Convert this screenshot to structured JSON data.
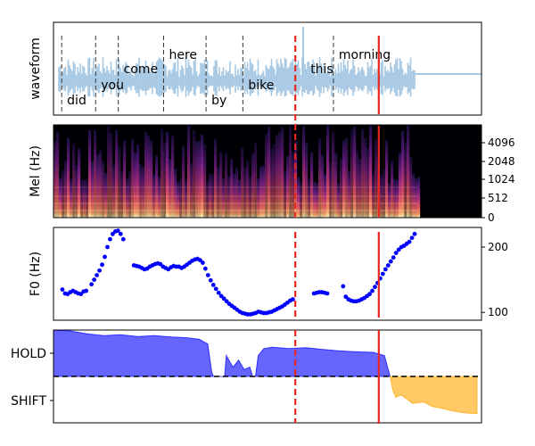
{
  "chart_data": [
    {
      "type": "line",
      "panel": "waveform",
      "ylabel": "waveform",
      "x_range": [
        0,
        6.3
      ],
      "words": [
        {
          "text": "did",
          "start": 0.05,
          "end": 0.65,
          "row": "low"
        },
        {
          "text": "you",
          "start": 0.65,
          "end": 1.05,
          "row": "mid"
        },
        {
          "text": "come",
          "start": 1.05,
          "end": 1.85,
          "row": "high"
        },
        {
          "text": "here",
          "start": 1.85,
          "end": 2.6,
          "row": "top"
        },
        {
          "text": "by",
          "start": 2.6,
          "end": 3.25,
          "row": "low"
        },
        {
          "text": "bike",
          "start": 3.25,
          "end": 4.35,
          "row": "mid"
        },
        {
          "text": "this",
          "start": 4.35,
          "end": 4.85,
          "row": "high"
        },
        {
          "text": "morning",
          "start": 4.85,
          "end": 6.3,
          "row": "top"
        }
      ],
      "boundaries": [
        0.05,
        0.65,
        1.05,
        1.85,
        2.6,
        3.25,
        4.85
      ]
    },
    {
      "type": "heatmap",
      "panel": "mel",
      "ylabel": "Mel (Hz)",
      "yticks": [
        "0",
        "512",
        "1024",
        "2048",
        "4096"
      ]
    },
    {
      "type": "scatter",
      "panel": "f0",
      "ylabel": "F0 (Hz)",
      "yticks": [
        100,
        200
      ],
      "ylim": [
        88,
        230
      ],
      "points": [
        [
          0.05,
          135
        ],
        [
          0.1,
          129
        ],
        [
          0.15,
          128
        ],
        [
          0.2,
          131
        ],
        [
          0.25,
          133
        ],
        [
          0.3,
          131
        ],
        [
          0.35,
          129
        ],
        [
          0.4,
          128
        ],
        [
          0.45,
          132
        ],
        [
          0.5,
          133
        ],
        [
          0.6,
          143
        ],
        [
          0.65,
          150
        ],
        [
          0.7,
          157
        ],
        [
          0.75,
          164
        ],
        [
          0.8,
          173
        ],
        [
          0.85,
          185
        ],
        [
          0.9,
          200
        ],
        [
          0.95,
          212
        ],
        [
          1.0,
          220
        ],
        [
          1.05,
          224
        ],
        [
          1.1,
          225
        ],
        [
          1.15,
          220
        ],
        [
          1.2,
          212
        ],
        [
          1.4,
          172
        ],
        [
          1.45,
          171
        ],
        [
          1.5,
          170
        ],
        [
          1.55,
          168
        ],
        [
          1.6,
          166
        ],
        [
          1.65,
          167
        ],
        [
          1.7,
          170
        ],
        [
          1.75,
          172
        ],
        [
          1.8,
          174
        ],
        [
          1.85,
          175
        ],
        [
          1.9,
          174
        ],
        [
          1.95,
          170
        ],
        [
          2.0,
          168
        ],
        [
          2.05,
          166
        ],
        [
          2.1,
          169
        ],
        [
          2.15,
          171
        ],
        [
          2.2,
          170
        ],
        [
          2.25,
          170
        ],
        [
          2.3,
          168
        ],
        [
          2.35,
          170
        ],
        [
          2.4,
          173
        ],
        [
          2.45,
          176
        ],
        [
          2.5,
          179
        ],
        [
          2.55,
          181
        ],
        [
          2.6,
          182
        ],
        [
          2.65,
          180
        ],
        [
          2.7,
          176
        ],
        [
          2.75,
          167
        ],
        [
          2.8,
          157
        ],
        [
          2.85,
          149
        ],
        [
          2.9,
          142
        ],
        [
          2.95,
          136
        ],
        [
          3.0,
          130
        ],
        [
          3.05,
          125
        ],
        [
          3.1,
          121
        ],
        [
          3.15,
          117
        ],
        [
          3.2,
          113
        ],
        [
          3.25,
          110
        ],
        [
          3.3,
          107
        ],
        [
          3.35,
          104
        ],
        [
          3.4,
          101
        ],
        [
          3.45,
          99
        ],
        [
          3.5,
          98
        ],
        [
          3.55,
          97
        ],
        [
          3.6,
          97
        ],
        [
          3.65,
          98
        ],
        [
          3.7,
          99
        ],
        [
          3.75,
          101
        ],
        [
          3.8,
          100
        ],
        [
          3.85,
          99
        ],
        [
          3.9,
          99
        ],
        [
          3.95,
          100
        ],
        [
          4.0,
          101
        ],
        [
          4.05,
          103
        ],
        [
          4.1,
          105
        ],
        [
          4.15,
          107
        ],
        [
          4.2,
          109
        ],
        [
          4.25,
          112
        ],
        [
          4.3,
          115
        ],
        [
          4.35,
          118
        ],
        [
          4.4,
          120
        ],
        [
          4.8,
          129
        ],
        [
          4.85,
          130
        ],
        [
          4.9,
          131
        ],
        [
          4.95,
          131
        ],
        [
          5.0,
          130
        ],
        [
          5.05,
          129
        ],
        [
          5.35,
          140
        ],
        [
          5.4,
          124
        ],
        [
          5.45,
          120
        ],
        [
          5.5,
          118
        ],
        [
          5.55,
          117
        ],
        [
          5.6,
          117
        ],
        [
          5.65,
          118
        ],
        [
          5.7,
          120
        ],
        [
          5.75,
          122
        ],
        [
          5.8,
          125
        ],
        [
          5.85,
          128
        ],
        [
          5.9,
          133
        ],
        [
          5.95,
          139
        ],
        [
          6.0,
          145
        ],
        [
          6.05,
          152
        ],
        [
          6.1,
          159
        ],
        [
          6.15,
          166
        ],
        [
          6.2,
          172
        ],
        [
          6.25,
          178
        ],
        [
          6.3,
          184
        ],
        [
          6.35,
          191
        ],
        [
          6.4,
          196
        ],
        [
          6.45,
          200
        ],
        [
          6.5,
          202
        ],
        [
          6.55,
          205
        ],
        [
          6.6,
          208
        ],
        [
          6.65,
          214
        ],
        [
          6.7,
          220
        ]
      ]
    },
    {
      "type": "area",
      "panel": "turn",
      "yticks": [
        "HOLD",
        "SHIFT"
      ],
      "ylim": [
        -1,
        1
      ],
      "hold": [
        [
          0.0,
          1.0
        ],
        [
          0.3,
          0.98
        ],
        [
          0.6,
          0.92
        ],
        [
          0.9,
          0.88
        ],
        [
          1.2,
          0.9
        ],
        [
          1.5,
          0.86
        ],
        [
          1.8,
          0.88
        ],
        [
          2.1,
          0.85
        ],
        [
          2.4,
          0.83
        ],
        [
          2.6,
          0.8
        ],
        [
          2.75,
          0.7
        ],
        [
          2.82,
          0.1
        ],
        [
          2.85,
          0.0
        ],
        [
          3.05,
          0.0
        ],
        [
          3.08,
          0.45
        ],
        [
          3.15,
          0.3
        ],
        [
          3.2,
          0.2
        ],
        [
          3.3,
          0.35
        ],
        [
          3.4,
          0.15
        ],
        [
          3.5,
          0.2
        ],
        [
          3.55,
          0.0
        ],
        [
          3.6,
          0.0
        ],
        [
          3.65,
          0.45
        ],
        [
          3.75,
          0.6
        ],
        [
          3.9,
          0.63
        ],
        [
          4.2,
          0.6
        ],
        [
          4.5,
          0.62
        ],
        [
          4.8,
          0.58
        ],
        [
          5.1,
          0.55
        ],
        [
          5.4,
          0.53
        ],
        [
          5.7,
          0.52
        ],
        [
          5.9,
          0.45
        ],
        [
          6.0,
          0.0
        ]
      ],
      "shift": [
        [
          6.0,
          0.0
        ],
        [
          6.05,
          -0.3
        ],
        [
          6.1,
          -0.45
        ],
        [
          6.2,
          -0.4
        ],
        [
          6.4,
          -0.58
        ],
        [
          6.6,
          -0.55
        ],
        [
          6.75,
          -0.65
        ],
        [
          6.9,
          -0.68
        ],
        [
          7.1,
          -0.74
        ],
        [
          7.3,
          -0.78
        ],
        [
          7.5,
          -0.8
        ],
        [
          7.55,
          -0.8
        ]
      ]
    }
  ],
  "markers": {
    "dashed_line_x": 0.565,
    "solid_line_x": 0.76,
    "color": "#e8261f"
  }
}
